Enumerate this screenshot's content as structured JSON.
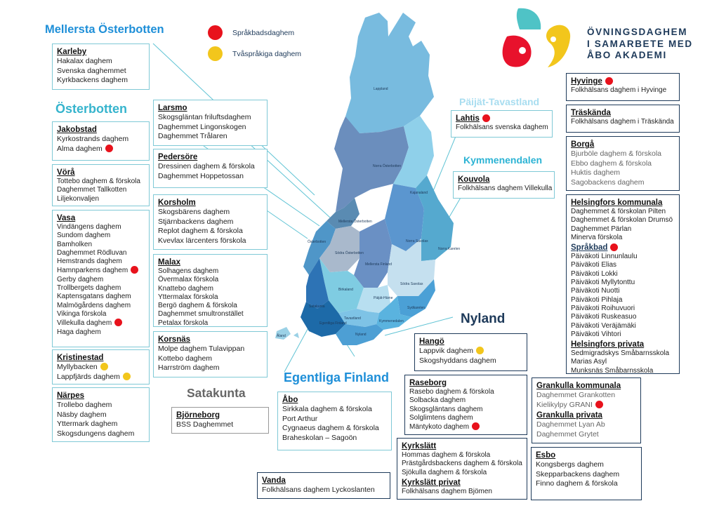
{
  "legend": {
    "red_label": "Språkbadsdaghem",
    "yellow_label": "Tvåspråkiga daghem",
    "red_color": "#e8121c",
    "yellow_color": "#f2c61c"
  },
  "logo": {
    "line1": "ÖVNINGSDAGHEM",
    "line2": "I SAMARBETE MED",
    "line3": "ÅBO AKADEMI"
  },
  "regions": {
    "mellersta_osterbotten": "Mellersta Österbotten",
    "osterbotten": "Österbotten",
    "satakunta": "Satakunta",
    "egentliga_finland": "Egentliga Finland",
    "nyland": "Nyland",
    "paijat_tavastland": "Päijät-Tavastland",
    "kymmenendalen": "Kymmenendalen"
  },
  "map_labels": {
    "lappland": "Lappland",
    "norra_osterbotten": "Norra Österbotten",
    "kajanaland": "Kajanaland",
    "mellersta_osterbotten": "Mellersta Österbotten",
    "osterbotten": "Österbotten",
    "sodra_osterbotten": "Södra Österbotten",
    "norra_savolax": "Norra Savolax",
    "norra_karelen": "Norra Karelen",
    "mellersta_finland": "Mellersta Finland",
    "birkaland": "Birkaland",
    "sodra_savolax": "Södra Savolax",
    "satakunta": "Satakunta",
    "paijat_hame": "Päijät-Häme",
    "sydkarelen": "Sydkarelen",
    "egentliga_finland": "Egentliga Finland",
    "tavastland": "Tavastland",
    "kymmenedalen": "Kymmenedalen",
    "nyland": "Nyland",
    "aland": "Åland"
  },
  "boxes": {
    "karleby": {
      "title": "Karleby",
      "items": [
        "Hakalax daghem",
        "Svenska daghemmet",
        "Kyrkbackens daghem"
      ]
    },
    "jakobstad": {
      "title": "Jakobstad",
      "items": [
        {
          "name": "Kyrkostrands daghem",
          "dot": ""
        },
        {
          "name": "Alma daghem",
          "dot": "red"
        }
      ]
    },
    "vora": {
      "title": "Vörå",
      "items": [
        "Tottebo daghem & förskola",
        "Daghemmet Tallkotten",
        "Liljekonvaljen"
      ]
    },
    "vasa": {
      "title": "Vasa",
      "items": [
        {
          "name": "Vindängens daghem",
          "dot": ""
        },
        {
          "name": "Sundom daghem",
          "dot": ""
        },
        {
          "name": "Bamholken",
          "dot": ""
        },
        {
          "name": "Daghemmet Rödluvan",
          "dot": ""
        },
        {
          "name": "Hemstrands daghem",
          "dot": ""
        },
        {
          "name": "Hamnparkens daghem",
          "dot": "red"
        },
        {
          "name": "Gerby daghem",
          "dot": ""
        },
        {
          "name": "Trollbergets daghem",
          "dot": ""
        },
        {
          "name": "Kaptensgatans daghem",
          "dot": ""
        },
        {
          "name": "Malmögårdens daghem",
          "dot": ""
        },
        {
          "name": "Vikinga förskola",
          "dot": ""
        },
        {
          "name": "Villekulla daghem",
          "dot": "red"
        },
        {
          "name": "Haga daghem",
          "dot": ""
        }
      ]
    },
    "kristinestad": {
      "title": "Kristinestad",
      "items": [
        {
          "name": "Myllybacken",
          "dot": "yellow"
        },
        {
          "name": "Lappfjärds daghem",
          "dot": "yellow"
        }
      ]
    },
    "narpes": {
      "title": "Närpes",
      "items": [
        "Trollebo daghem",
        "Näsby daghem",
        "Yttermark daghem",
        "Skogsdungens daghem"
      ]
    },
    "larsmo": {
      "title": "Larsmo",
      "items": [
        "Skogsgläntan friluftsdaghem",
        "Daghemmet Lingonskogen",
        "Daghemmet Trålaren"
      ]
    },
    "pedersore": {
      "title": "Pedersöre",
      "items": [
        "Dressinen daghem & förskola",
        "Daghemmet Hoppetossan"
      ]
    },
    "korsholm": {
      "title": "Korsholm",
      "items": [
        "Skogsbärens daghem",
        "Stjärnbackens daghem",
        "Replot daghem & förskola",
        "Kvevlax lärcenters förskola"
      ]
    },
    "malax": {
      "title": "Malax",
      "items": [
        "Solhagens daghem",
        "Övermalax förskola",
        "Knattebo daghem",
        "Yttermalax förskola",
        "Bergö daghem & förskola",
        "Daghemmet smultronstället",
        "Petalax förskola"
      ]
    },
    "korsnas": {
      "title": "Korsnäs",
      "items": [
        "Molpe daghem Tulavippan",
        "Kottebo daghem",
        "Harrström daghem"
      ]
    },
    "bjorneborg": {
      "title": "Björneborg",
      "items": [
        "BSS Daghemmet"
      ]
    },
    "abo": {
      "title": "Åbo",
      "items": [
        "Sirkkala daghem & förskola",
        "Port Arthur",
        "Cygnaeus daghem & förskola",
        "Braheskolan – Sagoön"
      ]
    },
    "vanda": {
      "title": "Vanda",
      "items": [
        "Folkhälsans daghem Lyckoslanten"
      ]
    },
    "hango": {
      "title": "Hangö",
      "items": [
        {
          "name": "Lappvik daghem",
          "dot": "yellow"
        },
        {
          "name": "Skogshyddans daghem",
          "dot": ""
        }
      ]
    },
    "raseborg": {
      "title": "Raseborg",
      "items": [
        {
          "name": "Rasebo daghem & förskola",
          "dot": ""
        },
        {
          "name": "Solbacka daghem",
          "dot": ""
        },
        {
          "name": "Skogsgläntans daghem",
          "dot": ""
        },
        {
          "name": "Solglimtens daghem",
          "dot": ""
        },
        {
          "name": "Mäntykoto daghem",
          "dot": "red"
        }
      ]
    },
    "kyrkslatt": {
      "title": "Kyrkslätt",
      "items": [
        "Hommas daghem & förskola",
        "Prästgårdsbackens daghem & förskola",
        "Sjökulla daghem & förskola"
      ],
      "title2": "Kyrkslätt privat",
      "items2": [
        "Folkhälsans daghem Bjömen"
      ]
    },
    "lahtis": {
      "title": "Lahtis",
      "title_dot": "red",
      "items": [
        "Folkhälsans svenska daghem"
      ]
    },
    "kouvola": {
      "title": "Kouvola",
      "items": [
        "Folkhälsans daghem Villekulla"
      ]
    },
    "hyvinge": {
      "title": "Hyvinge",
      "title_dot": "red",
      "items": [
        "Folkhälsans daghem i Hyvinge"
      ]
    },
    "traskanda": {
      "title": "Träskända",
      "items": [
        "Folkhälsans daghem i Träskända"
      ]
    },
    "borga": {
      "title": "Borgå",
      "items": [
        "Bjurböle daghem & förskola",
        "Ebbo daghem & förskola",
        "Huktis daghem",
        "Sagobackens daghem"
      ]
    },
    "helsingfors": {
      "title": "Helsingfors kommunala",
      "items": [
        "Daghemmet & förskolan Pilten",
        "Daghemmet & förskolan Drumsö",
        "Daghemmet Pärlan",
        "Minerva förskola"
      ],
      "sprakbad_title": "Språkbad",
      "sprakbad_items": [
        "Päiväkoti Linnunlaulu",
        "Päiväkoti Elias",
        "Päiväkoti Lokki",
        "Päiväkoti Myllytonttu",
        "Päiväkoti Nuotti",
        "Päiväkoti Pihlaja",
        "Päiväkoti Roihuvuori",
        "Päiväkoti Ruskeasuo",
        "Päiväkoti Veräjämäki",
        "Päiväkoti Vihtori"
      ],
      "privata_title": "Helsingfors privata",
      "privata_items": [
        "Sedmigradskys Småbarnsskola",
        "Marias Asyl",
        "Munksnäs Småbarnsskola"
      ]
    },
    "grankulla": {
      "title": "Grankulla kommunala",
      "items": [
        {
          "name": "Daghemmet Grankotten",
          "dot": ""
        },
        {
          "name": "Kielikylpy GRANI",
          "dot": "red"
        }
      ],
      "title2": "Grankulla privata",
      "items2": [
        "Daghemmet Lyan Ab",
        "Daghemmet Grytet"
      ]
    },
    "esbo": {
      "title": "Esbo",
      "items": [
        "Kongsbergs daghem",
        "Skepparbackens daghem",
        "Finno daghem & förskola"
      ]
    }
  }
}
